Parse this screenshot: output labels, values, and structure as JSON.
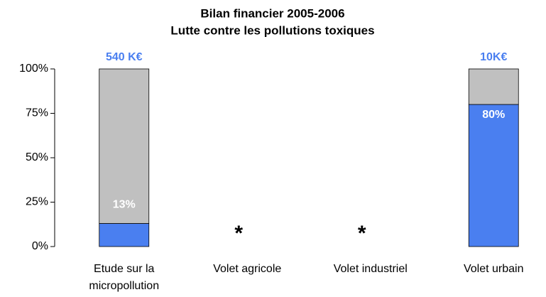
{
  "chart_data": {
    "type": "bar",
    "stacked": true,
    "title": "Bilan financier 2005-2006",
    "subtitle": "Lutte contre les pollutions toxiques",
    "categories": [
      "Etude sur la micropollution",
      "Volet agricole",
      "Volet industriel",
      "Volet urbain"
    ],
    "series": [
      {
        "color": "#4a7ff0",
        "values": [
          13,
          null,
          null,
          80
        ],
        "value_labels": [
          "13%",
          null,
          null,
          "80%"
        ]
      },
      {
        "color": "#c0c0c0",
        "values": [
          87,
          null,
          null,
          20
        ]
      }
    ],
    "top_labels": [
      "540 K€",
      null,
      null,
      "10K€"
    ],
    "markers": [
      null,
      "*",
      "*",
      null
    ],
    "ylim": [
      0,
      100
    ],
    "yticks": [
      {
        "value": 0,
        "label": "0%"
      },
      {
        "value": 25,
        "label": "25%"
      },
      {
        "value": 50,
        "label": "50%"
      },
      {
        "value": 75,
        "label": "75%"
      },
      {
        "value": 100,
        "label": "100%"
      }
    ],
    "grid": false
  }
}
